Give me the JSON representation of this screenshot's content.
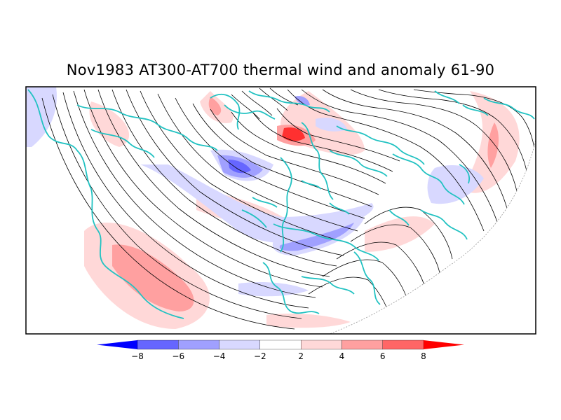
{
  "title": "Nov1983 AT300-AT700 thermal wind and anomaly 61-90",
  "colors": {
    "land_outline": "#22c2c2",
    "streamline": "#000000",
    "anomaly_scale": [
      "#0000ff",
      "#6666ff",
      "#a0a0ff",
      "#d8d8ff",
      "#ffffff",
      "#ffd8d8",
      "#ffa0a0",
      "#ff6666",
      "#ff0000"
    ]
  },
  "colorbar": {
    "levels": [
      "-8",
      "-6",
      "-4",
      "-2",
      "2",
      "4",
      "6",
      "8"
    ]
  }
}
